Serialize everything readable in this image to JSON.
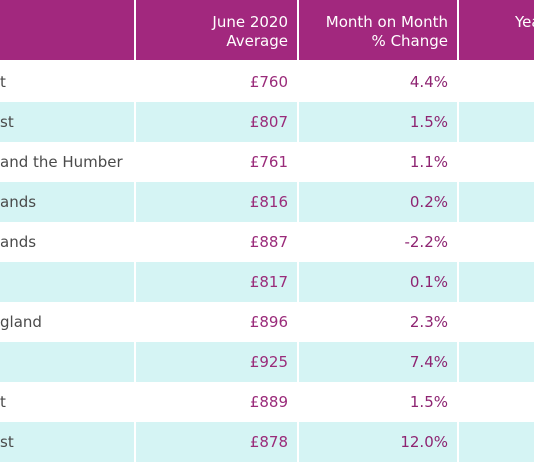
{
  "header": {
    "average_label": "June 2020 Average",
    "average_line1": "June 2020",
    "average_line2": "Average",
    "mom_line1": "Month on Month",
    "mom_line2": "% Change",
    "yoy_partial": "Yea"
  },
  "rows": [
    {
      "region": "t",
      "average": "£760",
      "mom": "4.4%"
    },
    {
      "region": "st",
      "average": "£807",
      "mom": "1.5%"
    },
    {
      "region": "and the Humber",
      "average": "£761",
      "mom": "1.1%"
    },
    {
      "region": "ands",
      "average": "£816",
      "mom": "0.2%"
    },
    {
      "region": "ands",
      "average": "£887",
      "mom": "-2.2%"
    },
    {
      "region": "",
      "average": "£817",
      "mom": "0.1%"
    },
    {
      "region": "gland",
      "average": "£896",
      "mom": "2.3%"
    },
    {
      "region": "",
      "average": "£925",
      "mom": "7.4%"
    },
    {
      "region": "t",
      "average": "£889",
      "mom": "1.5%"
    },
    {
      "region": "st",
      "average": "£878",
      "mom": "12.0%"
    }
  ],
  "colors": {
    "header_bg": "#a2287e",
    "header_text": "#ffffff",
    "stripe": "#d5f4f4",
    "value_text": "#9a2b7a",
    "region_text": "#4a4a4a"
  }
}
